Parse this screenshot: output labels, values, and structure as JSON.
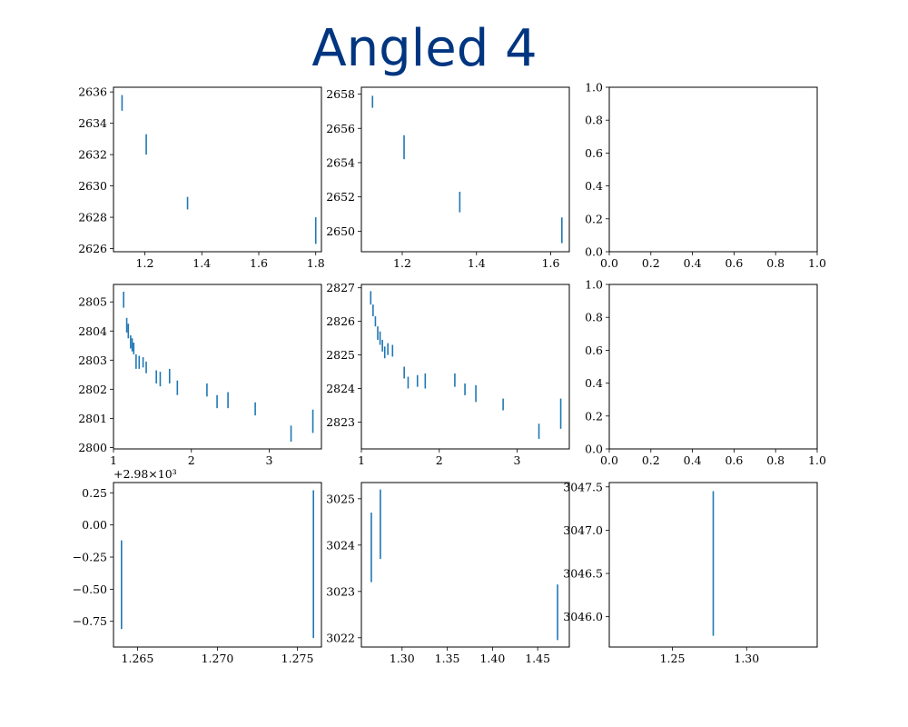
{
  "title": "Angled 4",
  "colors": {
    "errorbar": "#1f77b4",
    "title": "#003580",
    "axes": "#000000"
  },
  "chart_data": [
    {
      "type": "errorbar",
      "panel": "row1-col1",
      "xlim": [
        1.09,
        1.82
      ],
      "ylim": [
        2625.8,
        2636.3
      ],
      "xticks": [
        1.2,
        1.4,
        1.6,
        1.8
      ],
      "xtick_labels": [
        "1.2",
        "1.4",
        "1.6",
        "1.8"
      ],
      "yticks": [
        2626,
        2628,
        2630,
        2632,
        2634,
        2636
      ],
      "ytick_labels": [
        "2626",
        "2628",
        "2630",
        "2632",
        "2634",
        "2636"
      ],
      "offset_label": "",
      "points": [
        {
          "x": 1.12,
          "y_low": 2634.8,
          "y_high": 2635.8
        },
        {
          "x": 1.205,
          "y_low": 2632.0,
          "y_high": 2633.3
        },
        {
          "x": 1.35,
          "y_low": 2628.5,
          "y_high": 2629.3
        },
        {
          "x": 1.8,
          "y_low": 2626.3,
          "y_high": 2628.0
        }
      ]
    },
    {
      "type": "errorbar",
      "panel": "row1-col2",
      "xlim": [
        1.09,
        1.65
      ],
      "ylim": [
        2648.8,
        2658.4
      ],
      "xticks": [
        1.2,
        1.4,
        1.6
      ],
      "xtick_labels": [
        "1.2",
        "1.4",
        "1.6"
      ],
      "yticks": [
        2650,
        2652,
        2654,
        2656,
        2658
      ],
      "ytick_labels": [
        "2650",
        "2652",
        "2654",
        "2656",
        "2658"
      ],
      "offset_label": "",
      "points": [
        {
          "x": 1.12,
          "y_low": 2657.2,
          "y_high": 2657.9
        },
        {
          "x": 1.205,
          "y_low": 2654.2,
          "y_high": 2655.6
        },
        {
          "x": 1.355,
          "y_low": 2651.1,
          "y_high": 2652.3
        },
        {
          "x": 1.63,
          "y_low": 2649.3,
          "y_high": 2650.8
        }
      ]
    },
    {
      "type": "empty",
      "panel": "row1-col3",
      "xlim": [
        0,
        1
      ],
      "ylim": [
        0,
        1
      ],
      "xticks": [
        0,
        0.2,
        0.4,
        0.6,
        0.8,
        1.0
      ],
      "xtick_labels": [
        "0.0",
        "0.2",
        "0.4",
        "0.6",
        "0.8",
        "1.0"
      ],
      "yticks": [
        0,
        0.2,
        0.4,
        0.6,
        0.8,
        1.0
      ],
      "ytick_labels": [
        "0.0",
        "0.2",
        "0.4",
        "0.6",
        "0.8",
        "1.0"
      ],
      "offset_label": "",
      "points": []
    },
    {
      "type": "errorbar",
      "panel": "row2-col1",
      "xlim": [
        1.0,
        3.67
      ],
      "ylim": [
        2799.95,
        2805.6
      ],
      "xticks": [
        1,
        2,
        3
      ],
      "xtick_labels": [
        "1",
        "2",
        "3"
      ],
      "yticks": [
        2800,
        2801,
        2802,
        2803,
        2804,
        2805
      ],
      "ytick_labels": [
        "2800",
        "2801",
        "2802",
        "2803",
        "2804",
        "2805"
      ],
      "offset_label": "",
      "points": [
        {
          "x": 1.13,
          "y_low": 2804.8,
          "y_high": 2805.35
        },
        {
          "x": 1.17,
          "y_low": 2803.95,
          "y_high": 2804.45
        },
        {
          "x": 1.19,
          "y_low": 2803.75,
          "y_high": 2804.25
        },
        {
          "x": 1.22,
          "y_low": 2803.4,
          "y_high": 2803.85
        },
        {
          "x": 1.24,
          "y_low": 2803.3,
          "y_high": 2803.75
        },
        {
          "x": 1.26,
          "y_low": 2803.2,
          "y_high": 2803.6
        },
        {
          "x": 1.29,
          "y_low": 2802.7,
          "y_high": 2803.2
        },
        {
          "x": 1.33,
          "y_low": 2802.7,
          "y_high": 2803.15
        },
        {
          "x": 1.38,
          "y_low": 2802.75,
          "y_high": 2803.1
        },
        {
          "x": 1.42,
          "y_low": 2802.55,
          "y_high": 2802.95
        },
        {
          "x": 1.55,
          "y_low": 2802.2,
          "y_high": 2802.65
        },
        {
          "x": 1.6,
          "y_low": 2802.1,
          "y_high": 2802.6
        },
        {
          "x": 1.72,
          "y_low": 2802.2,
          "y_high": 2802.7
        },
        {
          "x": 1.82,
          "y_low": 2801.8,
          "y_high": 2802.3
        },
        {
          "x": 2.2,
          "y_low": 2801.75,
          "y_high": 2802.2
        },
        {
          "x": 2.33,
          "y_low": 2801.35,
          "y_high": 2801.8
        },
        {
          "x": 2.47,
          "y_low": 2801.35,
          "y_high": 2801.9
        },
        {
          "x": 2.82,
          "y_low": 2801.1,
          "y_high": 2801.55
        },
        {
          "x": 3.28,
          "y_low": 2800.2,
          "y_high": 2800.75
        },
        {
          "x": 3.56,
          "y_low": 2800.5,
          "y_high": 2801.3
        }
      ]
    },
    {
      "type": "errorbar",
      "panel": "row2-col2",
      "xlim": [
        1.0,
        3.67
      ],
      "ylim": [
        2822.2,
        2827.1
      ],
      "xticks": [
        1,
        2,
        3
      ],
      "xtick_labels": [
        "1",
        "2",
        "3"
      ],
      "yticks": [
        2823,
        2824,
        2825,
        2826,
        2827
      ],
      "ytick_labels": [
        "2823",
        "2824",
        "2825",
        "2826",
        "2827"
      ],
      "offset_label": "",
      "points": [
        {
          "x": 1.12,
          "y_low": 2826.5,
          "y_high": 2826.9
        },
        {
          "x": 1.15,
          "y_low": 2826.15,
          "y_high": 2826.5
        },
        {
          "x": 1.18,
          "y_low": 2825.85,
          "y_high": 2826.15
        },
        {
          "x": 1.21,
          "y_low": 2825.45,
          "y_high": 2825.85
        },
        {
          "x": 1.24,
          "y_low": 2825.3,
          "y_high": 2825.7
        },
        {
          "x": 1.27,
          "y_low": 2825.1,
          "y_high": 2825.45
        },
        {
          "x": 1.3,
          "y_low": 2824.9,
          "y_high": 2825.25
        },
        {
          "x": 1.34,
          "y_low": 2825.0,
          "y_high": 2825.35
        },
        {
          "x": 1.4,
          "y_low": 2824.95,
          "y_high": 2825.3
        },
        {
          "x": 1.55,
          "y_low": 2824.3,
          "y_high": 2824.65
        },
        {
          "x": 1.6,
          "y_low": 2824.0,
          "y_high": 2824.35
        },
        {
          "x": 1.72,
          "y_low": 2824.05,
          "y_high": 2824.4
        },
        {
          "x": 1.82,
          "y_low": 2824.0,
          "y_high": 2824.45
        },
        {
          "x": 2.2,
          "y_low": 2824.05,
          "y_high": 2824.45
        },
        {
          "x": 2.33,
          "y_low": 2823.8,
          "y_high": 2824.15
        },
        {
          "x": 2.47,
          "y_low": 2823.6,
          "y_high": 2824.1
        },
        {
          "x": 2.82,
          "y_low": 2823.35,
          "y_high": 2823.7
        },
        {
          "x": 3.28,
          "y_low": 2822.5,
          "y_high": 2822.95
        },
        {
          "x": 3.56,
          "y_low": 2822.8,
          "y_high": 2823.7
        }
      ]
    },
    {
      "type": "empty",
      "panel": "row2-col3",
      "xlim": [
        0,
        1
      ],
      "ylim": [
        0,
        1
      ],
      "xticks": [
        0,
        0.2,
        0.4,
        0.6,
        0.8,
        1.0
      ],
      "xtick_labels": [
        "0.0",
        "0.2",
        "0.4",
        "0.6",
        "0.8",
        "1.0"
      ],
      "yticks": [
        0,
        0.2,
        0.4,
        0.6,
        0.8,
        1.0
      ],
      "ytick_labels": [
        "0.0",
        "0.2",
        "0.4",
        "0.6",
        "0.8",
        "1.0"
      ],
      "offset_label": "",
      "points": []
    },
    {
      "type": "errorbar",
      "panel": "row3-col1",
      "xlim": [
        1.2635,
        1.2765
      ],
      "ylim": [
        -0.95,
        0.33
      ],
      "xticks": [
        1.265,
        1.27,
        1.275
      ],
      "xtick_labels": [
        "1.265",
        "1.270",
        "1.275"
      ],
      "yticks": [
        -0.75,
        -0.5,
        -0.25,
        0.0,
        0.25
      ],
      "ytick_labels": [
        "−0.75",
        "−0.50",
        "−0.25",
        "0.00",
        "0.25"
      ],
      "offset_label": "+2.98×10³",
      "points": [
        {
          "x": 1.264,
          "y_low": -0.81,
          "y_high": -0.12
        },
        {
          "x": 1.276,
          "y_low": -0.88,
          "y_high": 0.27
        }
      ]
    },
    {
      "type": "errorbar",
      "panel": "row3-col2",
      "xlim": [
        1.255,
        1.485
      ],
      "ylim": [
        3021.8,
        3025.35
      ],
      "xticks": [
        1.3,
        1.35,
        1.4,
        1.45
      ],
      "xtick_labels": [
        "1.30",
        "1.35",
        "1.40",
        "1.45"
      ],
      "yticks": [
        3022,
        3023,
        3024,
        3025
      ],
      "ytick_labels": [
        "3022",
        "3023",
        "3024",
        "3025"
      ],
      "offset_label": "",
      "points": [
        {
          "x": 1.266,
          "y_low": 3023.2,
          "y_high": 3024.7
        },
        {
          "x": 1.276,
          "y_low": 3023.7,
          "y_high": 3025.2
        },
        {
          "x": 1.472,
          "y_low": 3021.95,
          "y_high": 3023.15
        }
      ]
    },
    {
      "type": "errorbar",
      "panel": "row3-col3",
      "xlim": [
        1.2075,
        1.3475
      ],
      "ylim": [
        3045.65,
        3047.55
      ],
      "xticks": [
        1.25,
        1.3
      ],
      "xtick_labels": [
        "1.25",
        "1.30"
      ],
      "yticks": [
        3046.0,
        3046.5,
        3047.0,
        3047.5
      ],
      "ytick_labels": [
        "3046.0",
        "3046.5",
        "3047.0",
        "3047.5"
      ],
      "offset_label": "",
      "points": [
        {
          "x": 1.2775,
          "y_low": 3045.78,
          "y_high": 3047.45
        }
      ]
    }
  ]
}
